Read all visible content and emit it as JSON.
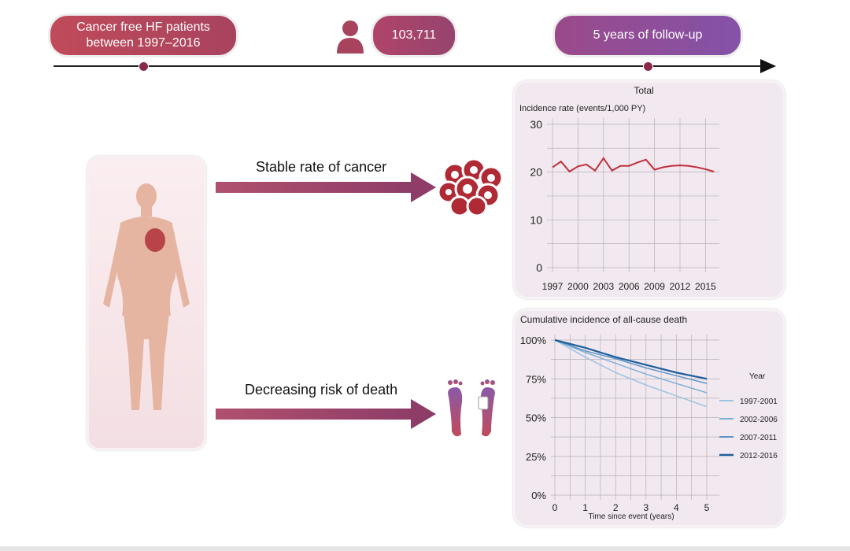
{
  "timeline": {
    "start_label": "Cancer free HF patients between 1997–2016",
    "patients_count": "103,711",
    "followup_label": "5 years of follow-up"
  },
  "icons": {
    "patient": "person-icon",
    "cancer": "cancer-cells-icon",
    "death": "feet-toe-tag-icon",
    "body": "human-body-heart-illustration"
  },
  "arrows": {
    "top_label": "Stable rate of cancer",
    "bottom_label": "Decreasing risk of death"
  },
  "colors": {
    "pill_red": "#b8455a",
    "pill_purple": "#8a4f9e",
    "line_red": "#c0303a"
  },
  "chart_data": [
    {
      "type": "line",
      "title": "Total",
      "ylabel": "Incidence rate (events/1,000 PY)",
      "xlabel": "",
      "ylim": [
        0,
        30
      ],
      "yticks": [
        "0",
        "10",
        "20",
        "30"
      ],
      "xticks": [
        "1997",
        "2000",
        "2003",
        "2006",
        "2009",
        "2012",
        "2015"
      ],
      "x": [
        1997,
        1998,
        1999,
        2000,
        2001,
        2002,
        2003,
        2004,
        2005,
        2006,
        2007,
        2008,
        2009,
        2010,
        2011,
        2012,
        2013,
        2014,
        2015,
        2016
      ],
      "values": [
        21,
        22.2,
        20.1,
        21.2,
        21.6,
        20.3,
        22.9,
        20.3,
        21.3,
        21.3,
        22,
        22.6,
        20.5,
        21,
        21.3,
        21.4,
        21.3,
        21,
        20.6,
        20.1
      ],
      "grid": true
    },
    {
      "type": "line",
      "title": "Cumulative incidence of all-cause death",
      "xlabel": "Time since event (years)",
      "ylabel": "",
      "ylim": [
        0,
        100
      ],
      "yticks": [
        "0%",
        "25%",
        "50%",
        "75%",
        "100%"
      ],
      "xticks": [
        "0",
        "1",
        "2",
        "3",
        "4",
        "5"
      ],
      "legend_title": "Year",
      "legend_position": "right",
      "grid": true,
      "x": [
        0,
        1,
        2,
        3,
        4,
        5
      ],
      "series": [
        {
          "name": "1997-2001",
          "color": "#9cc3e0",
          "values": [
            100,
            89,
            79,
            71,
            64,
            57
          ]
        },
        {
          "name": "2002-2006",
          "color": "#7fb0d6",
          "values": [
            100,
            92,
            85,
            78,
            72,
            66
          ]
        },
        {
          "name": "2007-2011",
          "color": "#5a95c6",
          "values": [
            100,
            93,
            88,
            82,
            77,
            72
          ]
        },
        {
          "name": "2012-2016",
          "color": "#1f5f9c",
          "values": [
            100,
            95,
            89,
            84,
            79,
            75
          ]
        }
      ]
    }
  ]
}
